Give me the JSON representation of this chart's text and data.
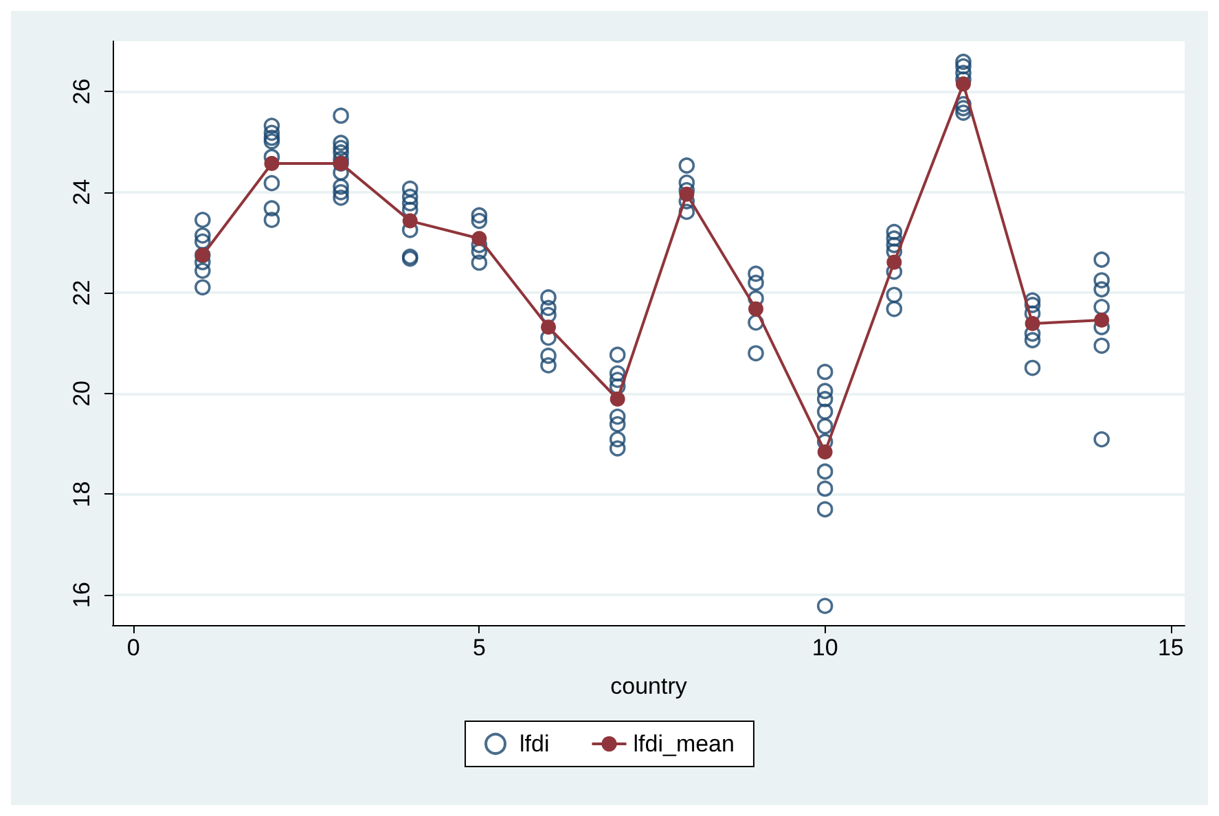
{
  "chart_data": {
    "type": "scatter",
    "xlabel": "country",
    "xlim": [
      -0.3,
      15.2
    ],
    "xticks": [
      0,
      5,
      10,
      15
    ],
    "ylim": [
      15.4,
      27.0
    ],
    "yticks": [
      16,
      18,
      20,
      22,
      24,
      26
    ],
    "grid": "y",
    "legend": "bottom",
    "series": [
      {
        "name": "lfdi",
        "marker": "circle",
        "color": "#1a476f",
        "x": [
          1,
          1,
          1,
          1,
          1,
          1,
          1,
          2,
          2,
          2,
          2,
          2,
          2,
          2,
          2,
          3,
          3,
          3,
          3,
          3,
          3,
          3,
          3,
          3,
          3,
          4,
          4,
          4,
          4,
          4,
          4,
          4,
          5,
          5,
          5,
          5,
          5,
          6,
          6,
          6,
          6,
          6,
          6,
          7,
          7,
          7,
          7,
          7,
          7,
          7,
          7,
          8,
          8,
          8,
          8,
          8,
          9,
          9,
          9,
          9,
          9,
          10,
          10,
          10,
          10,
          10,
          10,
          10,
          10,
          10,
          10,
          11,
          11,
          11,
          11,
          11,
          11,
          11,
          12,
          12,
          12,
          12,
          12,
          12,
          12,
          13,
          13,
          13,
          13,
          13,
          13,
          14,
          14,
          14,
          14,
          14,
          14,
          14
        ],
        "values": [
          23.45,
          23.14,
          23.02,
          22.61,
          22.44,
          22.11,
          22.75,
          25.32,
          25.18,
          25.08,
          25.01,
          24.7,
          24.18,
          23.68,
          23.45,
          25.52,
          24.98,
          24.88,
          24.79,
          24.66,
          24.57,
          24.39,
          24.11,
          24.0,
          23.89,
          24.07,
          23.91,
          23.78,
          23.65,
          23.25,
          22.68,
          22.72,
          23.54,
          23.43,
          22.95,
          22.82,
          22.6,
          21.91,
          21.7,
          21.56,
          21.11,
          20.75,
          20.56,
          20.77,
          20.4,
          20.27,
          20.14,
          19.54,
          19.39,
          19.09,
          18.91,
          24.53,
          24.19,
          24.04,
          23.82,
          23.61,
          22.38,
          22.2,
          21.89,
          21.41,
          20.8,
          20.43,
          20.05,
          19.89,
          19.64,
          19.35,
          19.04,
          18.45,
          18.11,
          17.7,
          15.78,
          23.21,
          23.08,
          22.95,
          22.82,
          22.42,
          21.96,
          21.68,
          26.59,
          26.5,
          26.37,
          26.24,
          25.75,
          25.67,
          25.58,
          21.85,
          21.76,
          21.59,
          21.19,
          21.06,
          20.51,
          22.66,
          22.25,
          22.07,
          21.72,
          21.32,
          20.95,
          19.09
        ]
      },
      {
        "name": "lfdi_mean",
        "type": "line",
        "marker": "circle",
        "line_style": "solid",
        "color": "#90353b",
        "x": [
          1,
          2,
          3,
          4,
          5,
          6,
          7,
          8,
          9,
          10,
          11,
          12,
          13,
          14
        ],
        "values": [
          22.75,
          24.57,
          24.57,
          23.43,
          23.08,
          21.32,
          19.89,
          23.96,
          21.68,
          18.84,
          22.61,
          26.15,
          21.39,
          21.46
        ]
      }
    ]
  }
}
